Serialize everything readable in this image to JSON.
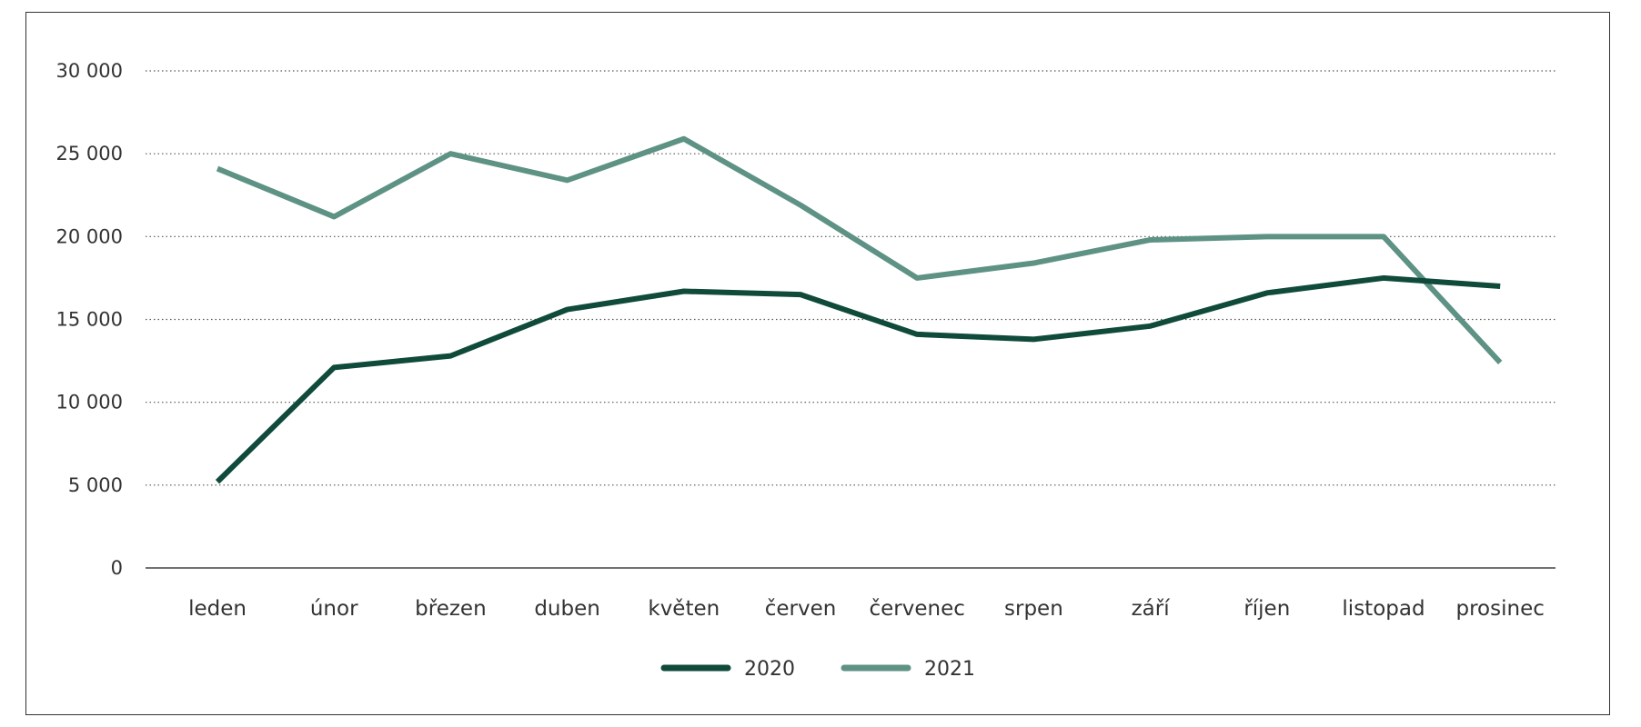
{
  "chart_data": {
    "type": "line",
    "categories": [
      "leden",
      "únor",
      "březen",
      "duben",
      "květen",
      "červen",
      "červenec",
      "srpen",
      "září",
      "říjen",
      "listopad",
      "prosinec"
    ],
    "series": [
      {
        "name": "2020",
        "color": "#0f4a3a",
        "values": [
          5200,
          12100,
          12800,
          15600,
          16700,
          16500,
          14100,
          13800,
          14600,
          16600,
          17500,
          17000
        ]
      },
      {
        "name": "2021",
        "color": "#5e9284",
        "values": [
          24100,
          21200,
          25000,
          23400,
          25900,
          21900,
          17500,
          18400,
          19800,
          20000,
          20000,
          12400
        ]
      }
    ],
    "y_ticks": [
      0,
      5000,
      10000,
      15000,
      20000,
      25000,
      30000
    ],
    "y_tick_labels": [
      "0",
      "5 000",
      "10 000",
      "15 000",
      "20 000",
      "25 000",
      "30 000"
    ],
    "ylim": [
      0,
      30000
    ],
    "grid": "horizontal-dotted",
    "legend_position": "bottom-center",
    "title": "",
    "xlabel": "",
    "ylabel": ""
  }
}
